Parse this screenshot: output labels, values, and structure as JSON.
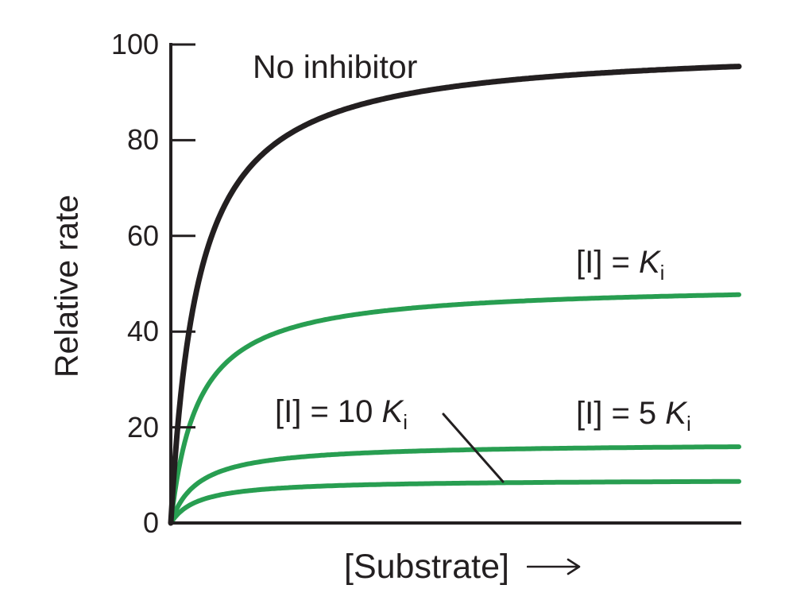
{
  "figure": {
    "background": "#ffffff",
    "text_color": "#231f20",
    "accent_green": "#289e51"
  },
  "chart_data": {
    "type": "line",
    "subject": "Enzyme relative rate vs substrate concentration with noncompetitive inhibitor",
    "model": "michaelis_menten",
    "km_normalized": 0.048,
    "grid": false,
    "legend": "inline curve labels",
    "x_axis": {
      "label": "[Substrate]",
      "arrow": true,
      "range_normalized": [
        0,
        1
      ],
      "ticks": []
    },
    "y_axis": {
      "label": "Relative rate",
      "range": [
        0,
        100
      ],
      "ticks": [
        100,
        80,
        60,
        40,
        20,
        0
      ],
      "tick_labels": [
        "100",
        "80",
        "60",
        "40",
        "20",
        "0"
      ]
    },
    "series": [
      {
        "name": "No inhibitor",
        "vmax": 100,
        "value_at_xmax": 95,
        "color": "#231f20",
        "stroke_width": 7
      },
      {
        "name": "[I] = Ki",
        "vmax": 50,
        "value_at_xmax": 48,
        "color": "#289e51",
        "stroke_width": 6
      },
      {
        "name": "[I] = 5 Ki",
        "vmax": 16.7,
        "value_at_xmax": 16,
        "color": "#289e51",
        "stroke_width": 6
      },
      {
        "name": "[I] = 10 Ki",
        "vmax": 9.1,
        "value_at_xmax": 9,
        "color": "#289e51",
        "stroke_width": 6
      }
    ]
  },
  "annotations": {
    "no_inhibitor": "No inhibitor",
    "ki": {
      "prefix": "[I] = ",
      "symbol": "K",
      "subscript": "i"
    },
    "ki5": {
      "prefix": "[I] = 5 ",
      "symbol": "K",
      "subscript": "i"
    },
    "ki10": {
      "prefix": "[I] = 10 ",
      "symbol": "K",
      "subscript": "i"
    }
  }
}
